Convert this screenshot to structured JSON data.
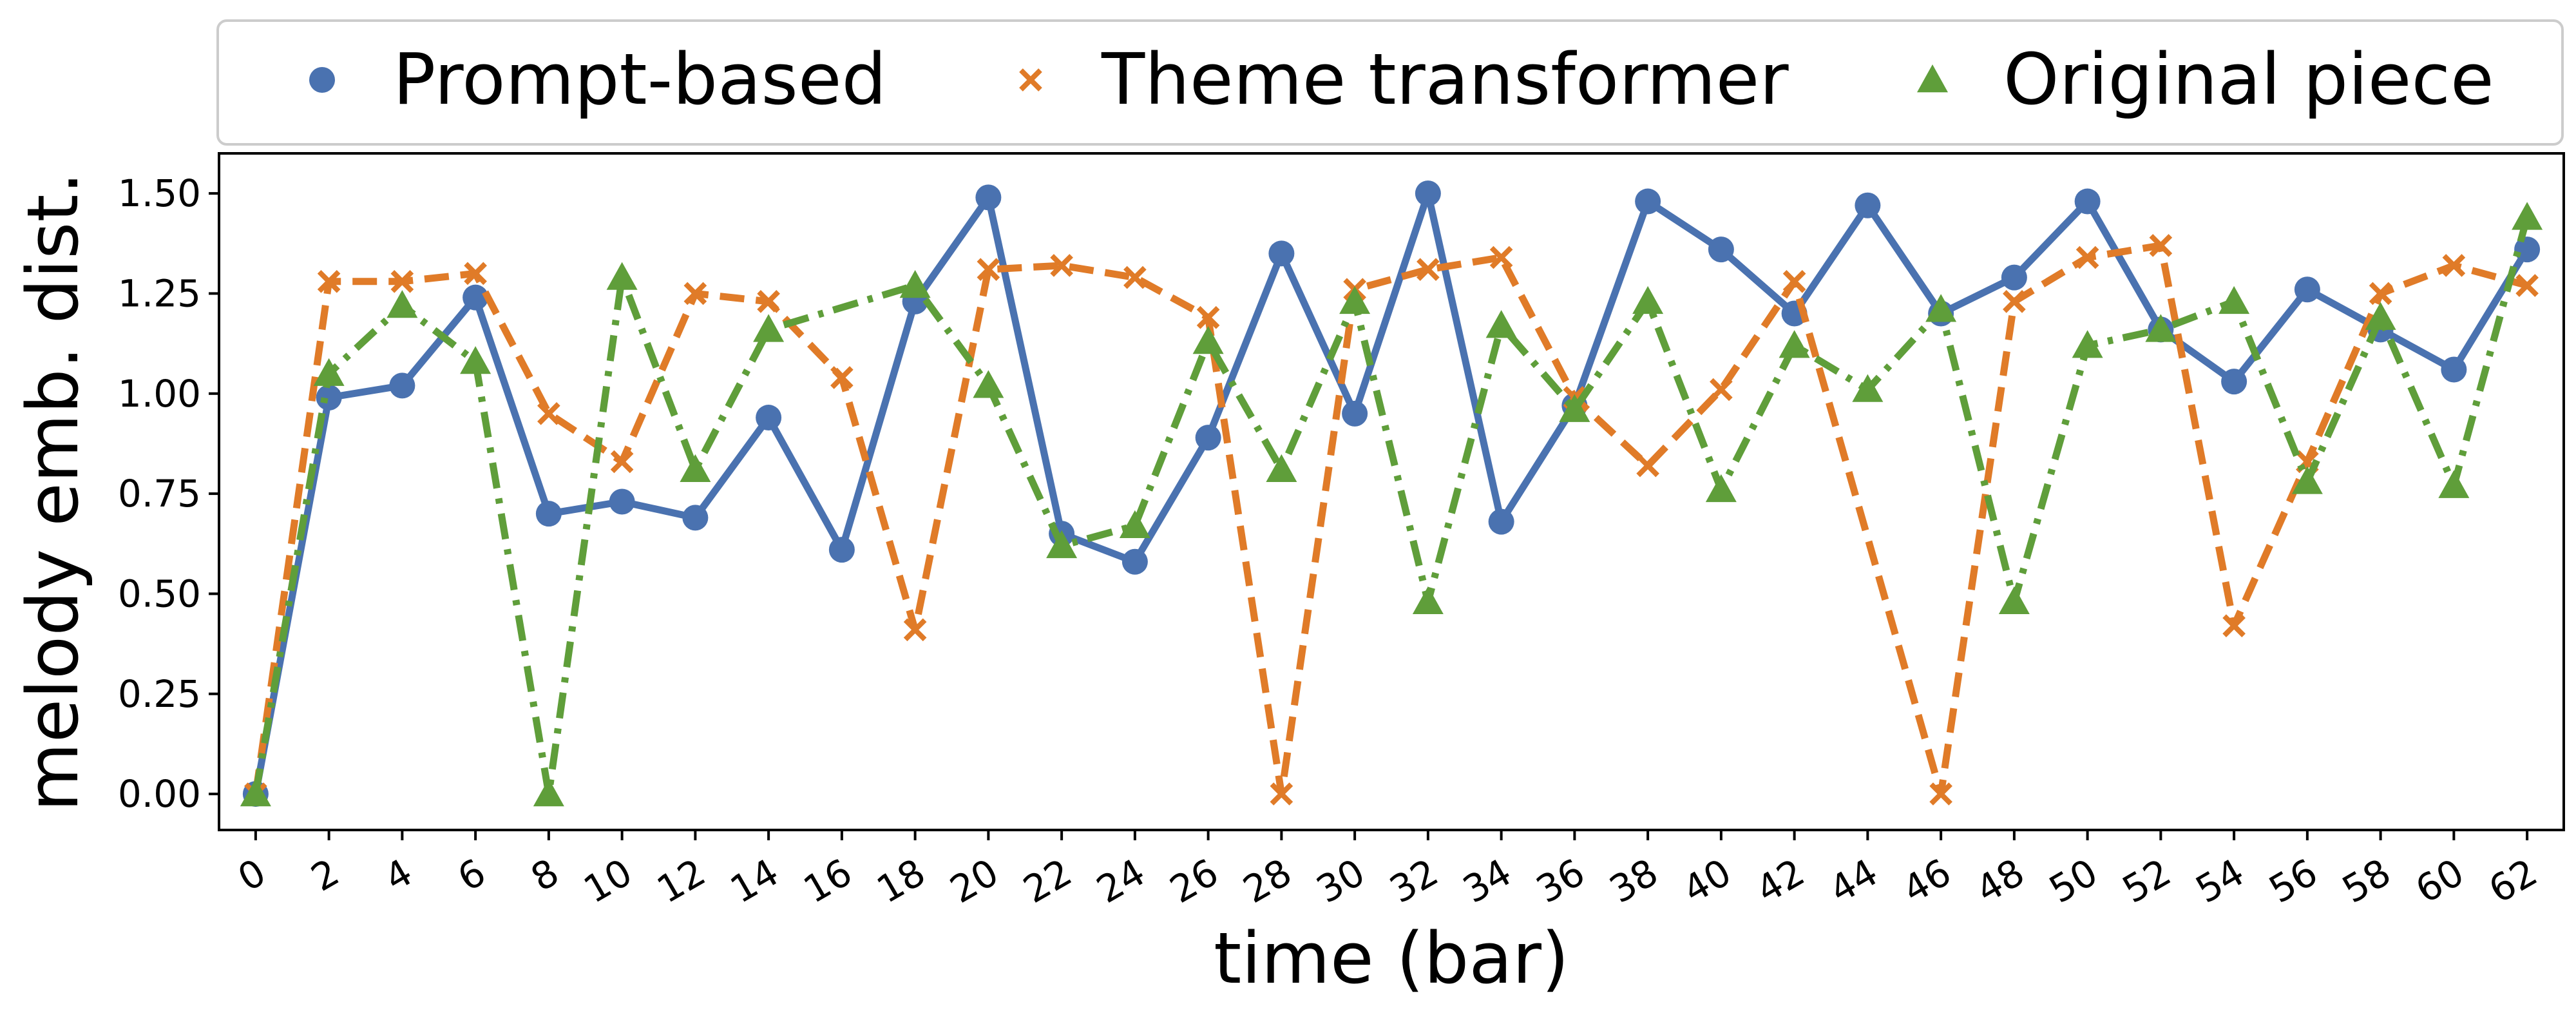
{
  "chart_data": {
    "type": "line",
    "xlabel": "time (bar)",
    "ylabel": "melody emb. dist.",
    "xlim": [
      -1,
      63
    ],
    "ylim": [
      -0.09,
      1.6
    ],
    "legend_position": "top-outside",
    "grid": false,
    "x": [
      0,
      2,
      4,
      6,
      8,
      10,
      12,
      14,
      16,
      18,
      20,
      22,
      24,
      26,
      28,
      30,
      32,
      34,
      36,
      38,
      40,
      42,
      44,
      46,
      48,
      50,
      52,
      54,
      56,
      58,
      60,
      62
    ],
    "x_tick_labels": [
      "0",
      "2",
      "4",
      "6",
      "8",
      "10",
      "12",
      "14",
      "16",
      "18",
      "20",
      "22",
      "24",
      "26",
      "28",
      "30",
      "32",
      "34",
      "36",
      "38",
      "40",
      "42",
      "44",
      "46",
      "48",
      "50",
      "52",
      "54",
      "56",
      "58",
      "60",
      "62"
    ],
    "y_ticks": [
      0.0,
      0.25,
      0.5,
      0.75,
      1.0,
      1.25,
      1.5
    ],
    "y_tick_labels": [
      "0.00",
      "0.25",
      "0.50",
      "0.75",
      "1.00",
      "1.25",
      "1.50"
    ],
    "series": [
      {
        "name": "Prompt-based",
        "color": "#4a72b0",
        "marker": "circle",
        "line_style": "solid",
        "values": [
          0.0,
          0.99,
          1.02,
          1.24,
          0.7,
          0.73,
          0.69,
          0.94,
          0.61,
          1.23,
          1.49,
          0.65,
          0.58,
          0.89,
          1.35,
          0.95,
          1.5,
          0.68,
          0.97,
          1.48,
          1.36,
          1.2,
          1.47,
          1.2,
          1.29,
          1.48,
          1.16,
          1.03,
          1.26,
          1.16,
          1.06,
          1.36
        ]
      },
      {
        "name": "Theme transformer",
        "color": "#e07b28",
        "marker": "x",
        "line_style": "dashed",
        "values": [
          0.0,
          1.28,
          1.28,
          1.3,
          0.95,
          0.83,
          1.25,
          1.23,
          1.04,
          0.41,
          1.31,
          1.32,
          1.29,
          1.19,
          0.0,
          1.26,
          1.31,
          1.34,
          0.99,
          0.82,
          1.01,
          1.28,
          null,
          0.0,
          1.23,
          1.34,
          1.37,
          0.42,
          0.83,
          1.25,
          1.32,
          1.27
        ]
      },
      {
        "name": "Original piece",
        "color": "#5f9e3a",
        "marker": "triangle",
        "line_style": "dashdot",
        "values": [
          0.0,
          1.05,
          1.22,
          1.08,
          0.0,
          1.29,
          0.81,
          1.16,
          null,
          1.27,
          1.02,
          0.62,
          0.67,
          1.13,
          0.81,
          1.23,
          0.48,
          1.17,
          0.96,
          1.23,
          0.76,
          1.12,
          1.01,
          1.21,
          0.48,
          1.12,
          1.16,
          1.23,
          0.78,
          1.19,
          0.77,
          1.44
        ]
      }
    ]
  }
}
